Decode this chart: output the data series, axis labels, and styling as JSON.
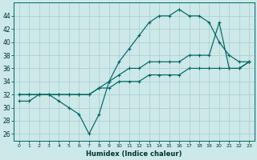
{
  "xlabel": "Humidex (Indice chaleur)",
  "ylabel": "",
  "bg_color": "#cce8e8",
  "grid_color": "#aacccc",
  "line_color": "#006666",
  "xlim": [
    -0.5,
    23.5
  ],
  "ylim": [
    25,
    46
  ],
  "yticks": [
    26,
    28,
    30,
    32,
    34,
    36,
    38,
    40,
    42,
    44
  ],
  "xticks": [
    0,
    1,
    2,
    3,
    4,
    5,
    6,
    7,
    8,
    9,
    10,
    11,
    12,
    13,
    14,
    15,
    16,
    17,
    18,
    19,
    20,
    21,
    22,
    23
  ],
  "series1": [
    31,
    31,
    32,
    32,
    31,
    30,
    29,
    26,
    29,
    34,
    37,
    39,
    41,
    43,
    44,
    44,
    45,
    44,
    44,
    43,
    40,
    38,
    37,
    37
  ],
  "series2": [
    32,
    32,
    32,
    32,
    32,
    32,
    32,
    32,
    33,
    34,
    35,
    36,
    36,
    37,
    37,
    37,
    37,
    38,
    38,
    38,
    43,
    36,
    36,
    37
  ],
  "series3": [
    32,
    32,
    32,
    32,
    32,
    32,
    32,
    32,
    33,
    33,
    34,
    34,
    34,
    35,
    35,
    35,
    35,
    36,
    36,
    36,
    36,
    36,
    36,
    37
  ]
}
